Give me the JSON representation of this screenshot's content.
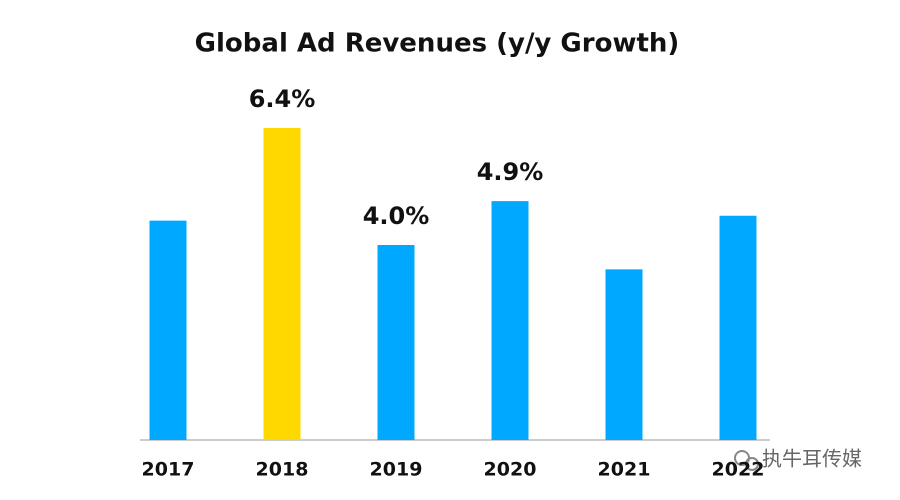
{
  "chart_data": {
    "type": "bar",
    "title": "Global Ad Revenues (y/y Growth)",
    "categories": [
      "2017",
      "2018",
      "2019",
      "2020",
      "2021",
      "2022"
    ],
    "values": [
      4.5,
      6.4,
      4.0,
      4.9,
      3.5,
      4.6
    ],
    "value_labels": [
      null,
      "6.4%",
      "4.0%",
      "4.9%",
      null,
      null
    ],
    "colors": [
      "#00a8ff",
      "#ffd800",
      "#00a8ff",
      "#00a8ff",
      "#00a8ff",
      "#00a8ff"
    ],
    "watermark": "执牛耳传媒"
  }
}
